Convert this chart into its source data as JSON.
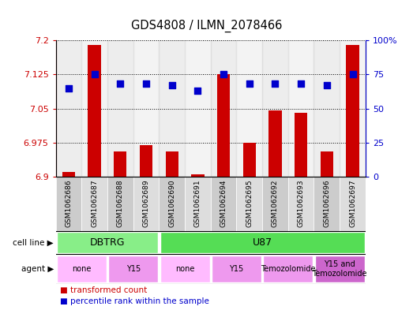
{
  "title": "GDS4808 / ILMN_2078466",
  "samples": [
    "GSM1062686",
    "GSM1062687",
    "GSM1062688",
    "GSM1062689",
    "GSM1062690",
    "GSM1062691",
    "GSM1062694",
    "GSM1062695",
    "GSM1062692",
    "GSM1062693",
    "GSM1062696",
    "GSM1062697"
  ],
  "transformed_count": [
    6.91,
    7.19,
    6.955,
    6.97,
    6.955,
    6.905,
    7.125,
    6.975,
    7.045,
    7.04,
    6.955,
    7.19
  ],
  "percentile_rank": [
    65,
    75,
    68,
    68,
    67,
    63,
    75,
    68,
    68,
    68,
    67,
    75
  ],
  "ylim_left": [
    6.9,
    7.2
  ],
  "yticks_left": [
    6.9,
    6.975,
    7.05,
    7.125,
    7.2
  ],
  "ytick_labels_left": [
    "6.9",
    "6.975",
    "7.05",
    "7.125",
    "7.2"
  ],
  "ylim_right": [
    0,
    100
  ],
  "yticks_right": [
    0,
    25,
    50,
    75,
    100
  ],
  "ytick_labels_right": [
    "0",
    "25",
    "50",
    "75",
    "100%"
  ],
  "bar_color": "#cc0000",
  "dot_color": "#0000cc",
  "cell_line_groups": [
    {
      "label": "DBTRG",
      "start": 0,
      "end": 3,
      "color": "#88ee88"
    },
    {
      "label": "U87",
      "start": 4,
      "end": 11,
      "color": "#55dd55"
    }
  ],
  "agent_groups": [
    {
      "label": "none",
      "start": 0,
      "end": 1,
      "color": "#ffbbff"
    },
    {
      "label": "Y15",
      "start": 2,
      "end": 3,
      "color": "#ee99ee"
    },
    {
      "label": "none",
      "start": 4,
      "end": 5,
      "color": "#ffbbff"
    },
    {
      "label": "Y15",
      "start": 6,
      "end": 7,
      "color": "#ee99ee"
    },
    {
      "label": "Temozolomide",
      "start": 8,
      "end": 9,
      "color": "#ee99ee"
    },
    {
      "label": "Y15 and\nTemozolomide",
      "start": 10,
      "end": 11,
      "color": "#cc66cc"
    }
  ],
  "col_colors": [
    "#cccccc",
    "#dddddd"
  ],
  "cell_line_row_label": "cell line",
  "agent_row_label": "agent",
  "legend_red": "transformed count",
  "legend_blue": "percentile rank within the sample",
  "bar_width": 0.5,
  "dot_size": 35,
  "bar_color_red": "#cc0000",
  "dot_color_blue": "#0000cc"
}
